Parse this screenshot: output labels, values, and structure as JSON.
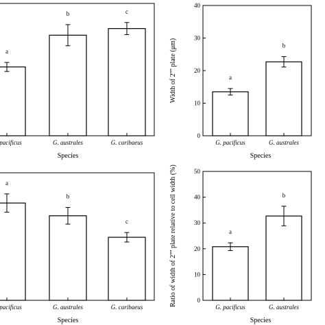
{
  "chart_data": [
    {
      "type": "bar",
      "xlabel": "Species",
      "ylabel": "",
      "categories": [
        "G. pacificus",
        "G. australes",
        "G. caribaeus"
      ],
      "values": [
        26,
        38,
        40.5
      ],
      "errors": [
        1.7,
        4,
        2.3
      ],
      "letters": [
        "a",
        "b",
        "c"
      ],
      "ylim": [
        0,
        50
      ]
    },
    {
      "type": "bar",
      "xlabel": "Species",
      "ylabel": "Width of 2'''' plate (μm)",
      "categories": [
        "G. pacificus",
        "G. australes"
      ],
      "values": [
        13.5,
        22.7
      ],
      "errors": [
        1.0,
        1.6
      ],
      "letters": [
        "a",
        "b"
      ],
      "ylim": [
        0,
        40
      ],
      "yticks": [
        "0",
        "10",
        "20",
        "30",
        "40"
      ]
    },
    {
      "type": "bar",
      "xlabel": "Species",
      "ylabel": "",
      "categories": [
        "G. pacificus",
        "G. australes",
        "G. caribaeus"
      ],
      "values": [
        26.7,
        23.2,
        17.3
      ],
      "errors": [
        2.5,
        2.3,
        1.3
      ],
      "letters": [
        "a",
        "b",
        "c"
      ],
      "ylim": [
        0,
        35
      ]
    },
    {
      "type": "bar",
      "xlabel": "Species",
      "ylabel": "Ratio of width of 2'''' plate relative to cell width (%)",
      "categories": [
        "G. pacificus",
        "G. australes"
      ],
      "values": [
        20.8,
        32.7
      ],
      "errors": [
        1.5,
        3.8
      ],
      "letters": [
        "a",
        "b"
      ],
      "ylim": [
        0,
        50
      ],
      "yticks": [
        "0",
        "10",
        "20",
        "30",
        "40",
        "50"
      ]
    }
  ]
}
